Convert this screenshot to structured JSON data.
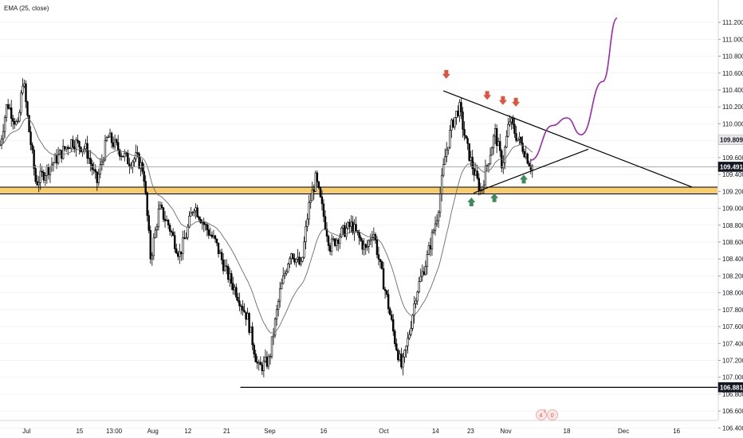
{
  "indicator": "EMA (25, close)",
  "chart_data": {
    "type": "candlestick",
    "price_axis": {
      "ticks": [
        "111.200",
        "111.000",
        "110.800",
        "110.600",
        "110.400",
        "110.200",
        "110.000",
        "109.800",
        "109.600",
        "109.400",
        "109.200",
        "109.000",
        "108.800",
        "108.600",
        "108.400",
        "108.200",
        "108.000",
        "107.800",
        "107.600",
        "107.400",
        "107.200",
        "107.000",
        "106.800",
        "106.600",
        "106.400"
      ],
      "range": [
        106.3,
        111.25
      ]
    },
    "time_axis": {
      "labels": [
        "Jul",
        "15",
        "13:00",
        "Aug",
        "12",
        "21",
        "Sep",
        "16",
        "Oct",
        "14",
        "23",
        "Nov",
        "18",
        "Dec",
        "16"
      ]
    },
    "price_tags": [
      {
        "value": "109.809",
        "style": "light"
      },
      {
        "value": "109.491",
        "style": "dark"
      },
      {
        "value": "106.881",
        "style": "dark"
      }
    ],
    "horizontal_levels": [
      {
        "price": 106.881,
        "color": "#000000",
        "kind": "support-line"
      },
      {
        "price": 109.491,
        "color": "#9e9e9e",
        "kind": "current-price-line"
      }
    ],
    "zones": [
      {
        "from": 109.17,
        "to": 109.25,
        "color": "#f6c453",
        "kind": "support-zone"
      }
    ],
    "trendlines": [
      {
        "name": "upper-trendline",
        "from": {
          "t": 0.618,
          "p": 110.39
        },
        "to": {
          "t": 0.965,
          "p": 109.25
        }
      },
      {
        "name": "lower-trendline",
        "from": {
          "t": 0.66,
          "p": 109.18
        },
        "to": {
          "t": 0.82,
          "p": 109.7
        }
      }
    ],
    "projection": {
      "color": "#9c27b0",
      "points": [
        [
          0.74,
          109.57
        ],
        [
          0.77,
          109.98
        ],
        [
          0.79,
          110.07
        ],
        [
          0.81,
          109.87
        ],
        [
          0.84,
          110.5
        ],
        [
          0.86,
          111.25
        ]
      ]
    },
    "markers": [
      {
        "dir": "down",
        "t": 0.622,
        "p": 110.58,
        "color": "#e0533d"
      },
      {
        "dir": "down",
        "t": 0.679,
        "p": 110.33,
        "color": "#e0533d"
      },
      {
        "dir": "down",
        "t": 0.701,
        "p": 110.27,
        "color": "#e0533d"
      },
      {
        "dir": "down",
        "t": 0.719,
        "p": 110.25,
        "color": "#e0533d"
      },
      {
        "dir": "up",
        "t": 0.657,
        "p": 109.08,
        "color": "#3f8a5c"
      },
      {
        "dir": "up",
        "t": 0.689,
        "p": 109.13,
        "color": "#3f8a5c"
      },
      {
        "dir": "up",
        "t": 0.73,
        "p": 109.35,
        "color": "#3f8a5c"
      }
    ],
    "badge": {
      "left": "4",
      "superscript": "2",
      "right": "0"
    },
    "colors": {
      "candle": "#000000",
      "ema": "#6b6b6b",
      "zone": "#f6c453",
      "projection": "#9c27b0"
    }
  }
}
